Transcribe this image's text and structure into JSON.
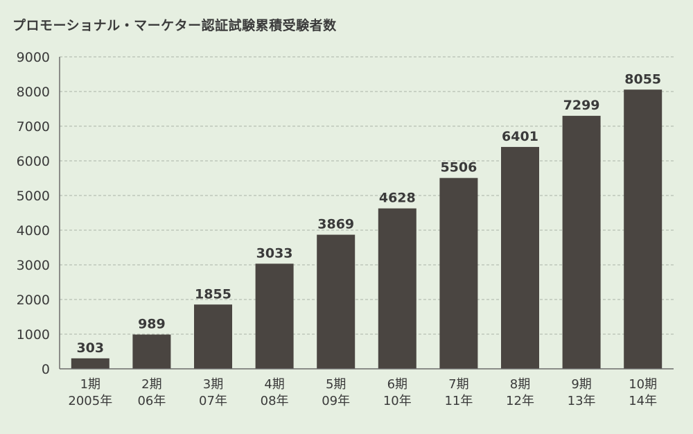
{
  "chart_data": {
    "type": "bar",
    "title": "プロモーショナル・マーケター認証試験累積受験者数",
    "categories": [
      [
        "1期",
        "2005年"
      ],
      [
        "2期",
        "06年"
      ],
      [
        "3期",
        "07年"
      ],
      [
        "4期",
        "08年"
      ],
      [
        "5期",
        "09年"
      ],
      [
        "6期",
        "10年"
      ],
      [
        "7期",
        "11年"
      ],
      [
        "8期",
        "12年"
      ],
      [
        "9期",
        "13年"
      ],
      [
        "10期",
        "14年"
      ]
    ],
    "values": [
      303,
      989,
      1855,
      3033,
      3869,
      4628,
      5506,
      6401,
      7299,
      8055
    ],
    "ylim": [
      0,
      9000
    ],
    "yticks": [
      "0",
      "1000",
      "2000",
      "3000",
      "4000",
      "5000",
      "6000",
      "7000",
      "8000",
      "9000"
    ],
    "grid": true,
    "colors": {
      "bar": "#4a4541",
      "grid": "#a9b3a6",
      "axis": "#6b6b6b",
      "background": "#e6efe1"
    }
  }
}
